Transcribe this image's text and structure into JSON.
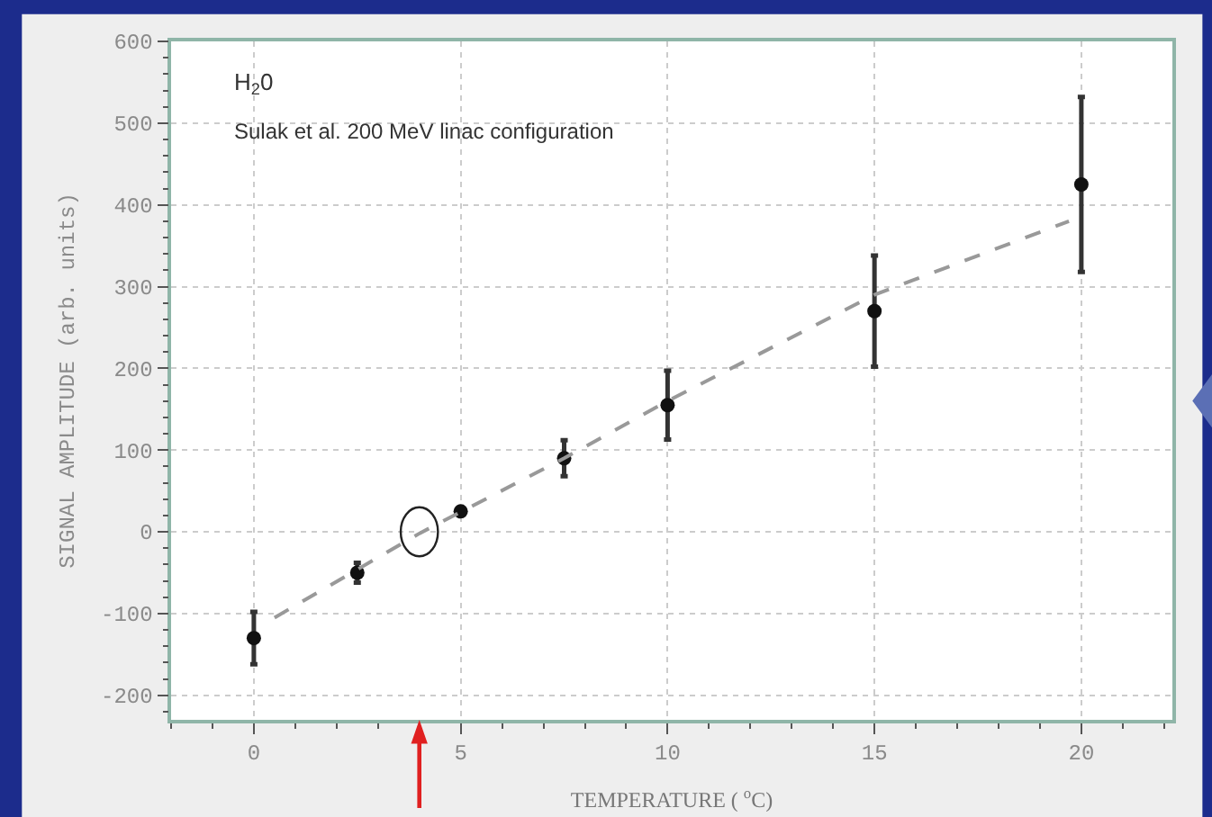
{
  "chart_data": {
    "type": "scatter",
    "xlabel": "TEMPERATURE ( $^{o}$C)",
    "ylabel": "SIGNAL AMPLITUDE (arb. units)",
    "annotations": [
      "H$_{2}$0",
      "Sulak et al. 200 MeV linac configuration"
    ],
    "series": [
      {
        "color": "#111111",
        "marker": "circle",
        "x": [
          0,
          2.5,
          5,
          7.5,
          10,
          15,
          20
        ],
        "values": [
          -130,
          -50,
          25,
          90,
          155,
          270,
          425
        ],
        "errors": [
          32,
          12,
          null,
          22,
          42,
          68,
          107
        ]
      },
      {
        "type": "line",
        "color": "#999999",
        "line_style": "dashed",
        "marker": "none",
        "x": [
          0.5,
          4,
          7.5,
          10,
          15,
          19.7
        ],
        "values": [
          -105,
          -2,
          90,
          160,
          290,
          380
        ]
      }
    ],
    "xlim": [
      -2,
      22.2
    ],
    "ylim": [
      -230,
      600
    ],
    "xticks": [
      0,
      5,
      10,
      15,
      20
    ],
    "yticks": [
      -200,
      -100,
      0,
      100,
      200,
      300,
      400,
      500,
      600
    ],
    "grid": true
  }
}
